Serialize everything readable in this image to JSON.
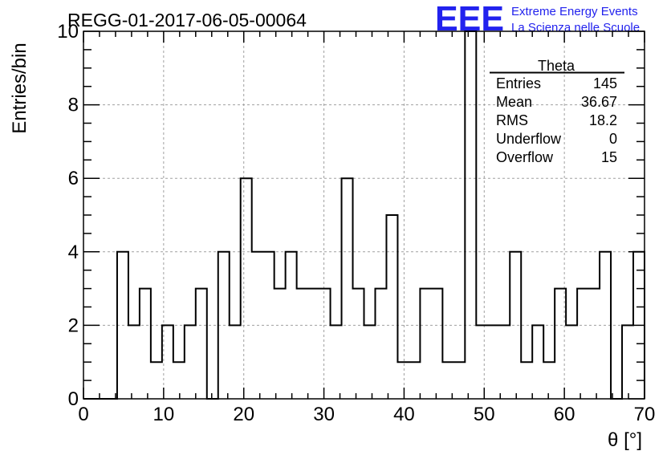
{
  "header": {
    "run_title": "REGG-01-2017-06-05-00064",
    "logo_text": "EEE",
    "logo_line1": "Extreme Energy Events",
    "logo_line2": "La Scienza nelle Scuole"
  },
  "colors": {
    "logo": "#2222ee",
    "histogram": "#000000",
    "grid": "#a0a0a0"
  },
  "stats_box": {
    "title": "Theta",
    "rows": [
      {
        "label": "Entries",
        "value": "145"
      },
      {
        "label": "Mean",
        "value": "36.67"
      },
      {
        "label": "RMS",
        "value": "18.2"
      },
      {
        "label": "Underflow",
        "value": "0"
      },
      {
        "label": "Overflow",
        "value": "15"
      }
    ]
  },
  "chart_data": {
    "type": "histogram",
    "xlabel": "θ [°]",
    "ylabel": "Entries/bin",
    "xlim": [
      0,
      70
    ],
    "ylim": [
      0,
      10
    ],
    "xticks": [
      0,
      10,
      20,
      30,
      40,
      50,
      60,
      70
    ],
    "yticks": [
      0,
      2,
      4,
      6,
      8,
      10
    ],
    "grid": true,
    "bin_width": 1.4,
    "bin_edges_start": 0,
    "values": [
      0,
      0,
      0,
      4,
      2,
      3,
      1,
      2,
      1,
      2,
      3,
      0,
      4,
      2,
      6,
      4,
      4,
      3,
      4,
      3,
      3,
      3,
      2,
      6,
      3,
      2,
      3,
      5,
      1,
      1,
      3,
      3,
      1,
      1,
      10,
      2,
      2,
      2,
      4,
      1,
      2,
      1,
      3,
      2,
      3,
      3,
      4,
      0,
      2,
      4
    ]
  }
}
